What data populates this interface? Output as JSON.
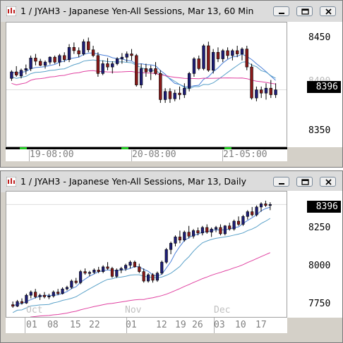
{
  "windows": [
    {
      "title": "1 / JYAH3 - Japanese Yen-All Sessions, Mar 13, 60 Min",
      "y_labels": [
        "8450",
        "8400",
        "8350"
      ],
      "current_price": "8396",
      "x_labels": [
        "19-08:00",
        "20-08:00",
        "21-05:00"
      ],
      "chart_data": {
        "type": "candlestick",
        "interval": "60 Min",
        "current": 8396,
        "ylim": [
          8330,
          8475
        ],
        "session_labels": [
          "19-08:00",
          "20-08:00",
          "21-05:00"
        ],
        "ohlc": [
          [
            8410,
            8420,
            8407,
            8418
          ],
          [
            8418,
            8425,
            8412,
            8414
          ],
          [
            8413,
            8422,
            8410,
            8420
          ],
          [
            8420,
            8427,
            8415,
            8422
          ],
          [
            8422,
            8438,
            8419,
            8435
          ],
          [
            8435,
            8440,
            8426,
            8431
          ],
          [
            8431,
            8434,
            8425,
            8426
          ],
          [
            8426,
            8432,
            8422,
            8430
          ],
          [
            8430,
            8437,
            8427,
            8436
          ],
          [
            8436,
            8438,
            8428,
            8430
          ],
          [
            8430,
            8440,
            8425,
            8438
          ],
          [
            8438,
            8442,
            8430,
            8433
          ],
          [
            8433,
            8452,
            8430,
            8448
          ],
          [
            8448,
            8454,
            8440,
            8444
          ],
          [
            8444,
            8448,
            8436,
            8440
          ],
          [
            8440,
            8458,
            8438,
            8455
          ],
          [
            8455,
            8460,
            8442,
            8445
          ],
          [
            8445,
            8450,
            8436,
            8438
          ],
          [
            8438,
            8442,
            8412,
            8416
          ],
          [
            8416,
            8432,
            8414,
            8428
          ],
          [
            8428,
            8435,
            8420,
            8424
          ],
          [
            8424,
            8431,
            8416,
            8428
          ],
          [
            8428,
            8436,
            8426,
            8434
          ],
          [
            8434,
            8441,
            8428,
            8436
          ],
          [
            8436,
            8443,
            8430,
            8440
          ],
          [
            8440,
            8446,
            8432,
            8438
          ],
          [
            8438,
            8440,
            8400,
            8402
          ],
          [
            8402,
            8428,
            8398,
            8422
          ],
          [
            8422,
            8428,
            8412,
            8418
          ],
          [
            8418,
            8426,
            8408,
            8422
          ],
          [
            8422,
            8430,
            8414,
            8416
          ],
          [
            8416,
            8420,
            8380,
            8384
          ],
          [
            8384,
            8398,
            8380,
            8394
          ],
          [
            8394,
            8398,
            8380,
            8385
          ],
          [
            8385,
            8396,
            8382,
            8392
          ],
          [
            8392,
            8400,
            8384,
            8390
          ],
          [
            8390,
            8404,
            8386,
            8398
          ],
          [
            8398,
            8418,
            8394,
            8416
          ],
          [
            8416,
            8436,
            8412,
            8434
          ],
          [
            8434,
            8438,
            8420,
            8422
          ],
          [
            8422,
            8452,
            8420,
            8450
          ],
          [
            8450,
            8455,
            8418,
            8420
          ],
          [
            8420,
            8446,
            8416,
            8442
          ],
          [
            8442,
            8448,
            8430,
            8434
          ],
          [
            8434,
            8446,
            8430,
            8444
          ],
          [
            8444,
            8448,
            8434,
            8438
          ],
          [
            8438,
            8446,
            8432,
            8444
          ],
          [
            8444,
            8450,
            8436,
            8440
          ],
          [
            8440,
            8448,
            8432,
            8446
          ],
          [
            8446,
            8450,
            8420,
            8424
          ],
          [
            8424,
            8428,
            8384,
            8386
          ],
          [
            8386,
            8400,
            8382,
            8396
          ],
          [
            8396,
            8400,
            8386,
            8392
          ],
          [
            8392,
            8404,
            8384,
            8398
          ],
          [
            8398,
            8408,
            8386,
            8390
          ],
          [
            8390,
            8404,
            8386,
            8396
          ]
        ],
        "ma_colors": [
          "#4a7fd8",
          "#58a0c8",
          "#e040a0"
        ],
        "up_color": "#1e1e78",
        "down_color": "#8b1a1a"
      }
    },
    {
      "title": "1 / JYAH3 - Japanese Yen-All Sessions, Mar 13, Daily",
      "y_labels": [
        "8250",
        "8000",
        "7750"
      ],
      "current_price": "8396",
      "x_months": [
        "Oct",
        "Nov",
        "Dec"
      ],
      "x_days": [
        "01",
        "08",
        "15",
        "22",
        "01",
        "12",
        "19",
        "26",
        "03",
        "10",
        "17"
      ],
      "chart_data": {
        "type": "candlestick",
        "interval": "Daily",
        "current": 8396,
        "ylim": [
          7700,
          8460
        ],
        "month_labels": [
          "Oct",
          "Nov",
          "Dec"
        ],
        "day_labels": [
          "01",
          "08",
          "15",
          "22",
          "01",
          "12",
          "19",
          "26",
          "03",
          "10",
          "17"
        ],
        "ohlc": [
          [
            7760,
            7780,
            7740,
            7750
          ],
          [
            7750,
            7790,
            7745,
            7780
          ],
          [
            7780,
            7800,
            7760,
            7770
          ],
          [
            7770,
            7830,
            7765,
            7820
          ],
          [
            7820,
            7850,
            7800,
            7840
          ],
          [
            7840,
            7860,
            7800,
            7810
          ],
          [
            7810,
            7830,
            7790,
            7820
          ],
          [
            7820,
            7840,
            7800,
            7810
          ],
          [
            7810,
            7830,
            7795,
            7815
          ],
          [
            7815,
            7850,
            7805,
            7840
          ],
          [
            7840,
            7860,
            7820,
            7830
          ],
          [
            7830,
            7870,
            7825,
            7860
          ],
          [
            7860,
            7880,
            7850,
            7870
          ],
          [
            7870,
            7920,
            7860,
            7910
          ],
          [
            7910,
            7930,
            7890,
            7900
          ],
          [
            7900,
            7980,
            7890,
            7970
          ],
          [
            7970,
            7990,
            7950,
            7960
          ],
          [
            7960,
            7975,
            7940,
            7965
          ],
          [
            7965,
            7990,
            7955,
            7980
          ],
          [
            7980,
            8000,
            7960,
            7970
          ],
          [
            7970,
            8010,
            7960,
            8000
          ],
          [
            8000,
            8030,
            7980,
            7990
          ],
          [
            7990,
            8000,
            7930,
            7940
          ],
          [
            7940,
            7990,
            7930,
            7980
          ],
          [
            7980,
            8000,
            7960,
            7990
          ],
          [
            7990,
            8020,
            7975,
            8010
          ],
          [
            8010,
            8040,
            7990,
            8030
          ],
          [
            8030,
            8040,
            7995,
            8000
          ],
          [
            8000,
            8020,
            7960,
            7970
          ],
          [
            7970,
            7990,
            7900,
            7910
          ],
          [
            7910,
            7960,
            7900,
            7950
          ],
          [
            7950,
            7960,
            7900,
            7915
          ],
          [
            7915,
            7970,
            7905,
            7960
          ],
          [
            7960,
            8040,
            7950,
            8030
          ],
          [
            8030,
            8120,
            8020,
            8110
          ],
          [
            8110,
            8160,
            8080,
            8150
          ],
          [
            8150,
            8200,
            8130,
            8190
          ],
          [
            8190,
            8230,
            8150,
            8170
          ],
          [
            8170,
            8230,
            8160,
            8220
          ],
          [
            8220,
            8260,
            8180,
            8195
          ],
          [
            8195,
            8240,
            8180,
            8230
          ],
          [
            8230,
            8250,
            8200,
            8215
          ],
          [
            8215,
            8260,
            8200,
            8250
          ],
          [
            8250,
            8270,
            8210,
            8220
          ],
          [
            8220,
            8250,
            8190,
            8240
          ],
          [
            8240,
            8260,
            8220,
            8250
          ],
          [
            8250,
            8270,
            8200,
            8210
          ],
          [
            8210,
            8265,
            8200,
            8260
          ],
          [
            8260,
            8280,
            8230,
            8240
          ],
          [
            8240,
            8300,
            8230,
            8290
          ],
          [
            8290,
            8320,
            8260,
            8270
          ],
          [
            8270,
            8330,
            8260,
            8320
          ],
          [
            8320,
            8360,
            8300,
            8350
          ],
          [
            8350,
            8380,
            8320,
            8330
          ],
          [
            8330,
            8390,
            8320,
            8380
          ],
          [
            8380,
            8410,
            8350,
            8400
          ],
          [
            8400,
            8420,
            8380,
            8390
          ],
          [
            8390,
            8410,
            8360,
            8396
          ]
        ],
        "ma_colors": [
          "#4a7fd8",
          "#58a0c8",
          "#e040a0"
        ],
        "up_color": "#1e1e78",
        "down_color": "#8b1a1a"
      }
    }
  ],
  "controls": {
    "minimize_icon": "minimize-icon",
    "restore_icon": "restore-icon",
    "close_icon": "close-icon"
  }
}
